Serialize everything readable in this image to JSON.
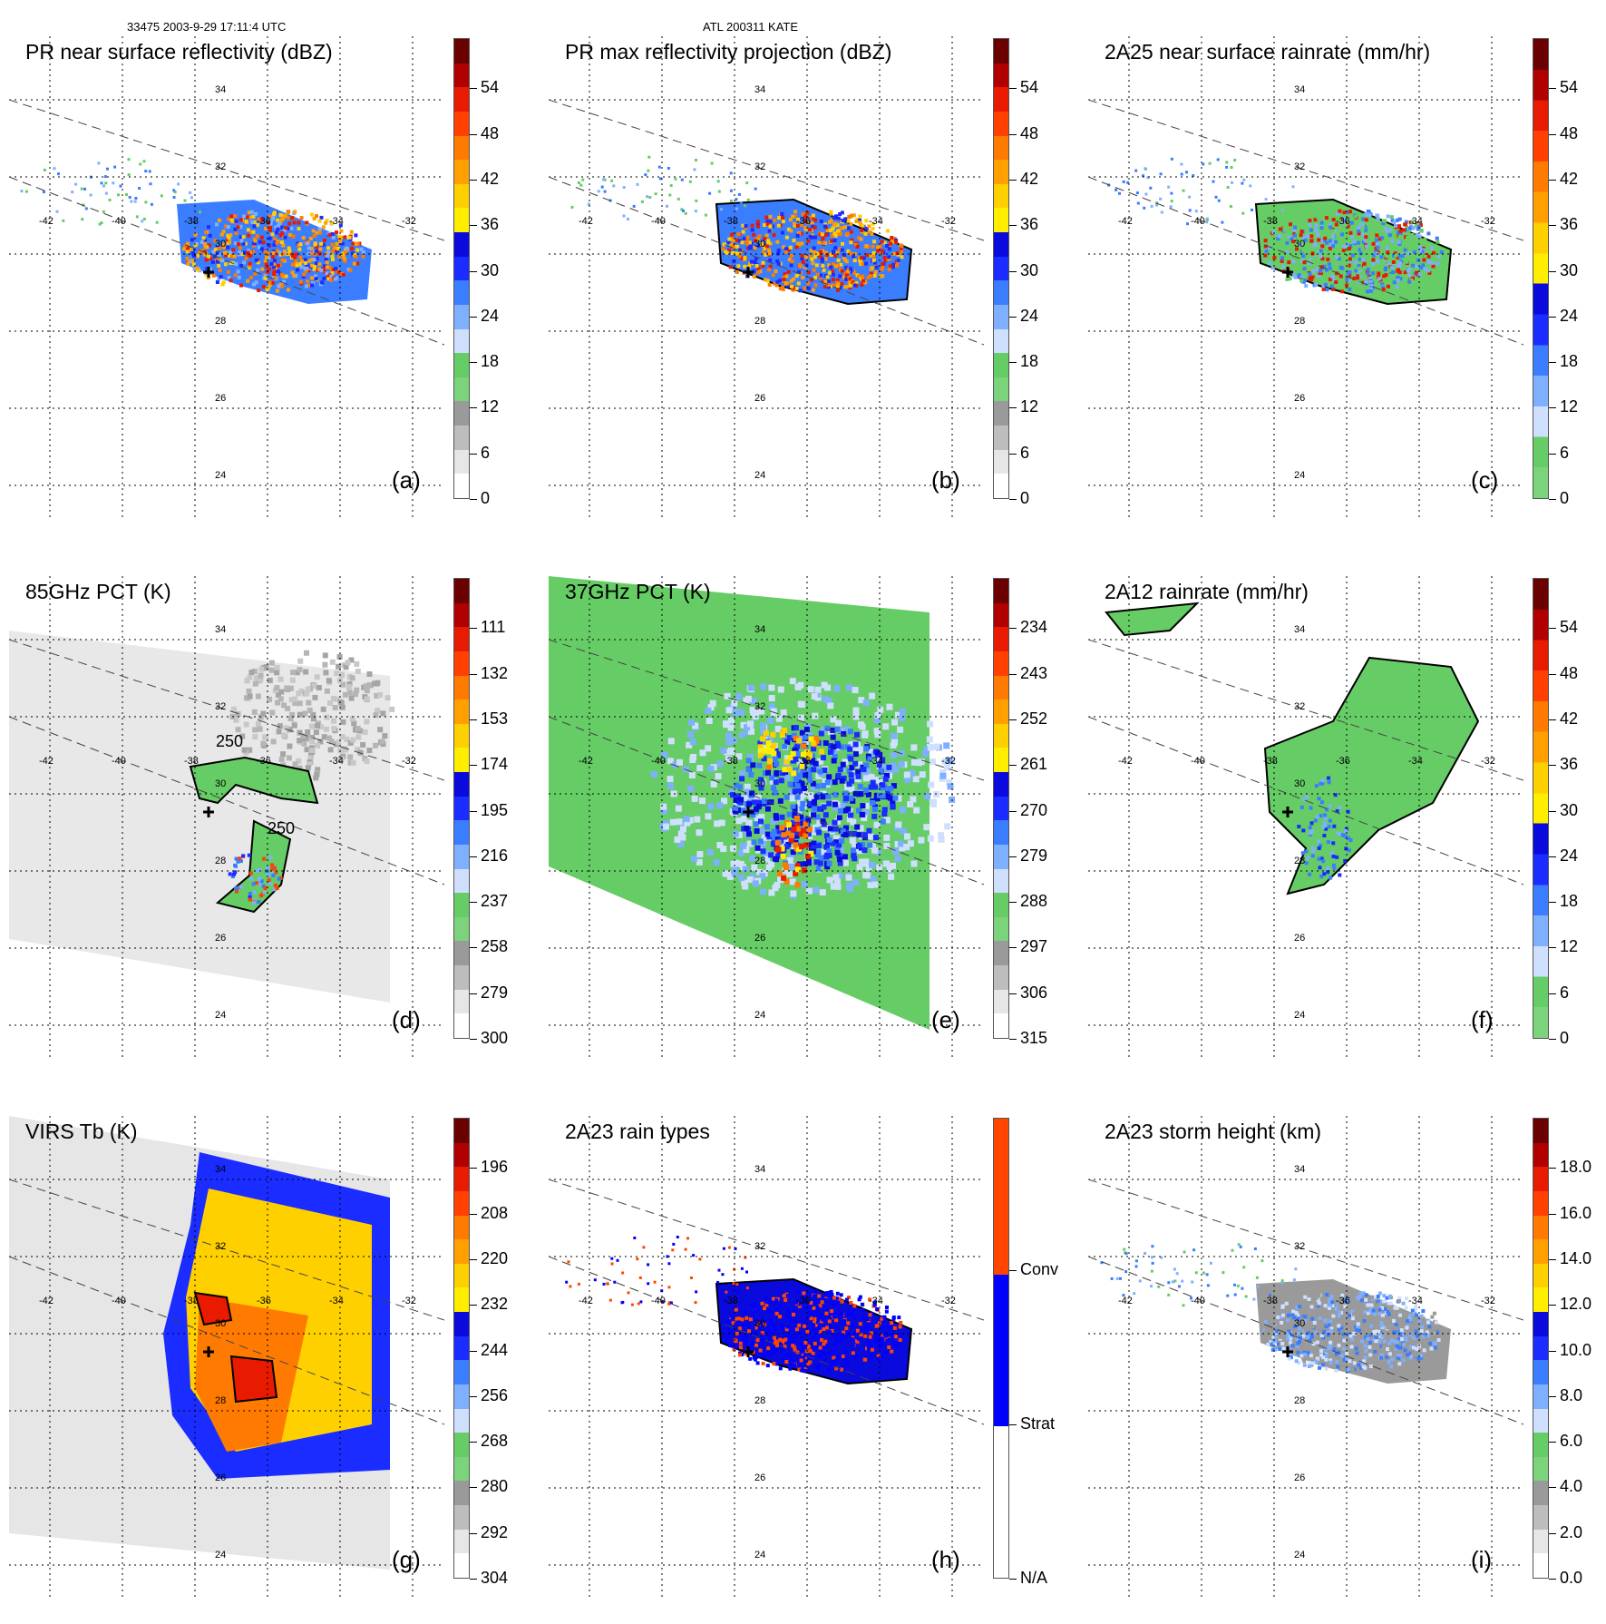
{
  "header": {
    "left": "33475 2003-9-29 17:11:4 UTC",
    "center": "ATL 200311 KATE"
  },
  "grid": {
    "lon_labels": [
      "-42",
      "-40",
      "-38",
      "-36",
      "-34",
      "-32"
    ],
    "lat_labels": [
      "34",
      "32",
      "30",
      "28",
      "26",
      "24"
    ]
  },
  "panels": [
    {
      "id": "a",
      "title": "PR near surface reflectivity (dBZ)",
      "label": "(a)",
      "colorbar": [
        "0",
        "6",
        "12",
        "18",
        "24",
        "30",
        "36",
        "42",
        "48",
        "54"
      ]
    },
    {
      "id": "b",
      "title": "PR max reflectivity projection (dBZ)",
      "label": "(b)",
      "colorbar": [
        "0",
        "6",
        "12",
        "18",
        "24",
        "30",
        "36",
        "42",
        "48",
        "54"
      ]
    },
    {
      "id": "c",
      "title": "2A25 near surface rainrate (mm/hr)",
      "label": "(c)",
      "colorbar": [
        "0",
        "6",
        "12",
        "18",
        "24",
        "30",
        "36",
        "42",
        "48",
        "54"
      ]
    },
    {
      "id": "d",
      "title": "85GHz PCT (K)",
      "label": "(d)",
      "colorbar": [
        "300",
        "279",
        "258",
        "237",
        "216",
        "195",
        "174",
        "153",
        "132",
        "111"
      ],
      "contour_label": "250"
    },
    {
      "id": "e",
      "title": "37GHz PCT (K)",
      "label": "(e)",
      "colorbar": [
        "315",
        "306",
        "297",
        "288",
        "279",
        "270",
        "261",
        "252",
        "243",
        "234"
      ]
    },
    {
      "id": "f",
      "title": "2A12 rainrate (mm/hr)",
      "label": "(f)",
      "colorbar": [
        "0",
        "6",
        "12",
        "18",
        "24",
        "30",
        "36",
        "42",
        "48",
        "54"
      ]
    },
    {
      "id": "g",
      "title": "VIRS Tb (K)",
      "label": "(g)",
      "colorbar": [
        "304",
        "292",
        "280",
        "268",
        "256",
        "244",
        "232",
        "220",
        "208",
        "196"
      ]
    },
    {
      "id": "h",
      "title": "2A23 rain types",
      "label": "(h)",
      "colorbar": [
        "N/A",
        "Strat",
        "Conv"
      ]
    },
    {
      "id": "i",
      "title": "2A23 storm height (km)",
      "label": "(i)",
      "colorbar": [
        "0.0",
        "2.0",
        "4.0",
        "6.0",
        "8.0",
        "10.0",
        "12.0",
        "14.0",
        "16.0",
        "18.0"
      ]
    }
  ],
  "colors": {
    "dbz_scale": [
      "#ffffff",
      "#e6e6e6",
      "#bdbdbd",
      "#9a9a9a",
      "#7bd37b",
      "#66cc66",
      "#cfe0ff",
      "#7fb0ff",
      "#3b7dff",
      "#1a2cff",
      "#0a0adc",
      "#ffee00",
      "#ffd000",
      "#ffa000",
      "#ff7a00",
      "#ff4000",
      "#e81a00",
      "#b00000",
      "#6a0000"
    ],
    "rain_scale": [
      "#7bd37b",
      "#66cc66",
      "#cfe0ff",
      "#7fb0ff",
      "#3b7dff",
      "#1a2cff",
      "#0a0adc",
      "#ffee00",
      "#ffd000",
      "#ffa000",
      "#ff7a00",
      "#ff4000",
      "#e81a00",
      "#b00000",
      "#6a0000"
    ],
    "rain_type": [
      "#ffffff",
      "#0000ff",
      "#ff4500"
    ]
  }
}
